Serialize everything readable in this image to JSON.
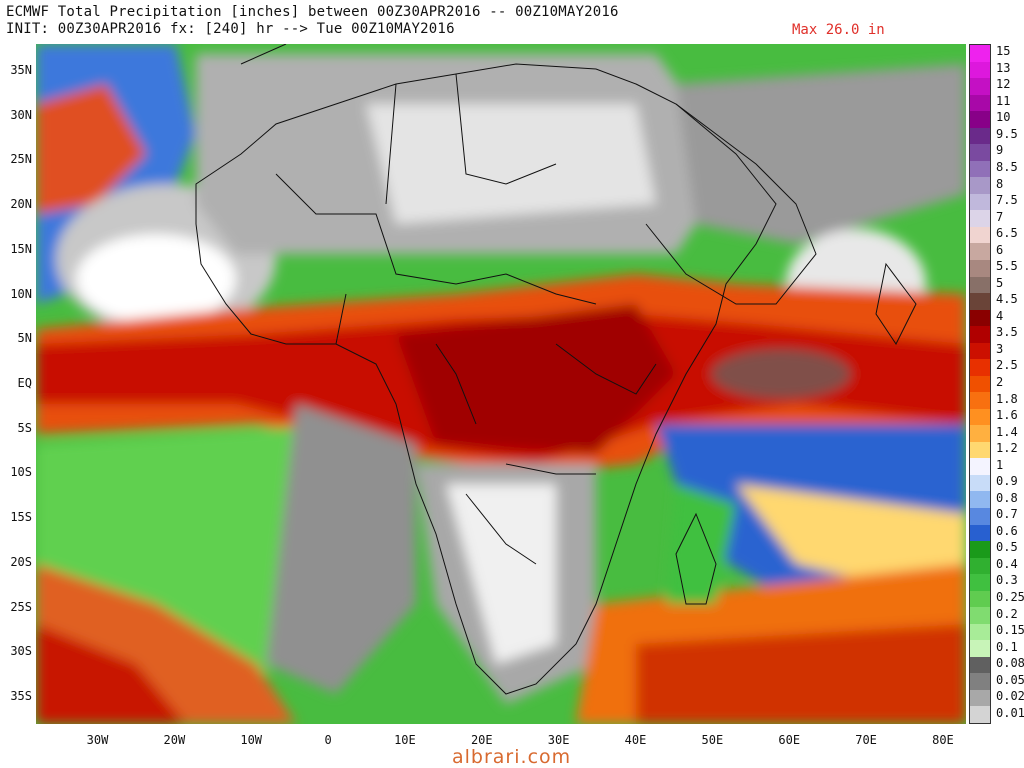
{
  "header": {
    "line1": "ECMWF Total Precipitation [inches] between 00Z30APR2016 -- 00Z10MAY2016",
    "line2": "INIT: 00Z30APR2016 fx: [240] hr --> Tue 00Z10MAY2016",
    "max_label": "Max 26.0 in"
  },
  "map": {
    "lat_range": [
      -38,
      38
    ],
    "lon_range": [
      -38,
      83
    ],
    "lat_labels": [
      "35N",
      "30N",
      "25N",
      "20N",
      "15N",
      "10N",
      "5N",
      "EQ",
      "5S",
      "10S",
      "15S",
      "20S",
      "25S",
      "30S",
      "35S"
    ],
    "lat_values": [
      35,
      30,
      25,
      20,
      15,
      10,
      5,
      0,
      -5,
      -10,
      -15,
      -20,
      -25,
      -30,
      -35
    ],
    "lon_labels": [
      "30W",
      "20W",
      "10W",
      "0",
      "10E",
      "20E",
      "30E",
      "40E",
      "50E",
      "60E",
      "70E",
      "80E"
    ],
    "lon_values": [
      -30,
      -20,
      -10,
      0,
      10,
      20,
      30,
      40,
      50,
      60,
      70,
      80
    ]
  },
  "colorbar": {
    "labels": [
      "15",
      "13",
      "12",
      "11",
      "10",
      "9.5",
      "9",
      "8.5",
      "8",
      "7.5",
      "7",
      "6.5",
      "6",
      "5.5",
      "5",
      "4.5",
      "4",
      "3.5",
      "3",
      "2.5",
      "2",
      "1.8",
      "1.6",
      "1.4",
      "1.2",
      "1",
      "0.9",
      "0.8",
      "0.7",
      "0.6",
      "0.5",
      "0.4",
      "0.3",
      "0.25",
      "0.2",
      "0.15",
      "0.1",
      "0.08",
      "0.05",
      "0.02",
      "0.01"
    ],
    "colors": [
      "#ee22ee",
      "#dd18dd",
      "#c410c4",
      "#a808a8",
      "#880088",
      "#6a2a8a",
      "#7a4aa0",
      "#9070b8",
      "#a898c8",
      "#c0b8dc",
      "#dcd4e8",
      "#f0d4d0",
      "#c8a8a0",
      "#a88880",
      "#887068",
      "#6a4438",
      "#8a0000",
      "#b00000",
      "#cc1000",
      "#e83000",
      "#f05000",
      "#f87010",
      "#ff9020",
      "#ffb040",
      "#ffd870",
      "#f4f4ff",
      "#c8dcf8",
      "#90b8f0",
      "#5888e0",
      "#2860d0",
      "#1a9a1a",
      "#30b030",
      "#40c040",
      "#60cc50",
      "#80dc70",
      "#a8ec98",
      "#c8f4b8",
      "#606060",
      "#808080",
      "#a8a8a8",
      "#d4d4d4"
    ]
  },
  "watermark": "albrari.com"
}
